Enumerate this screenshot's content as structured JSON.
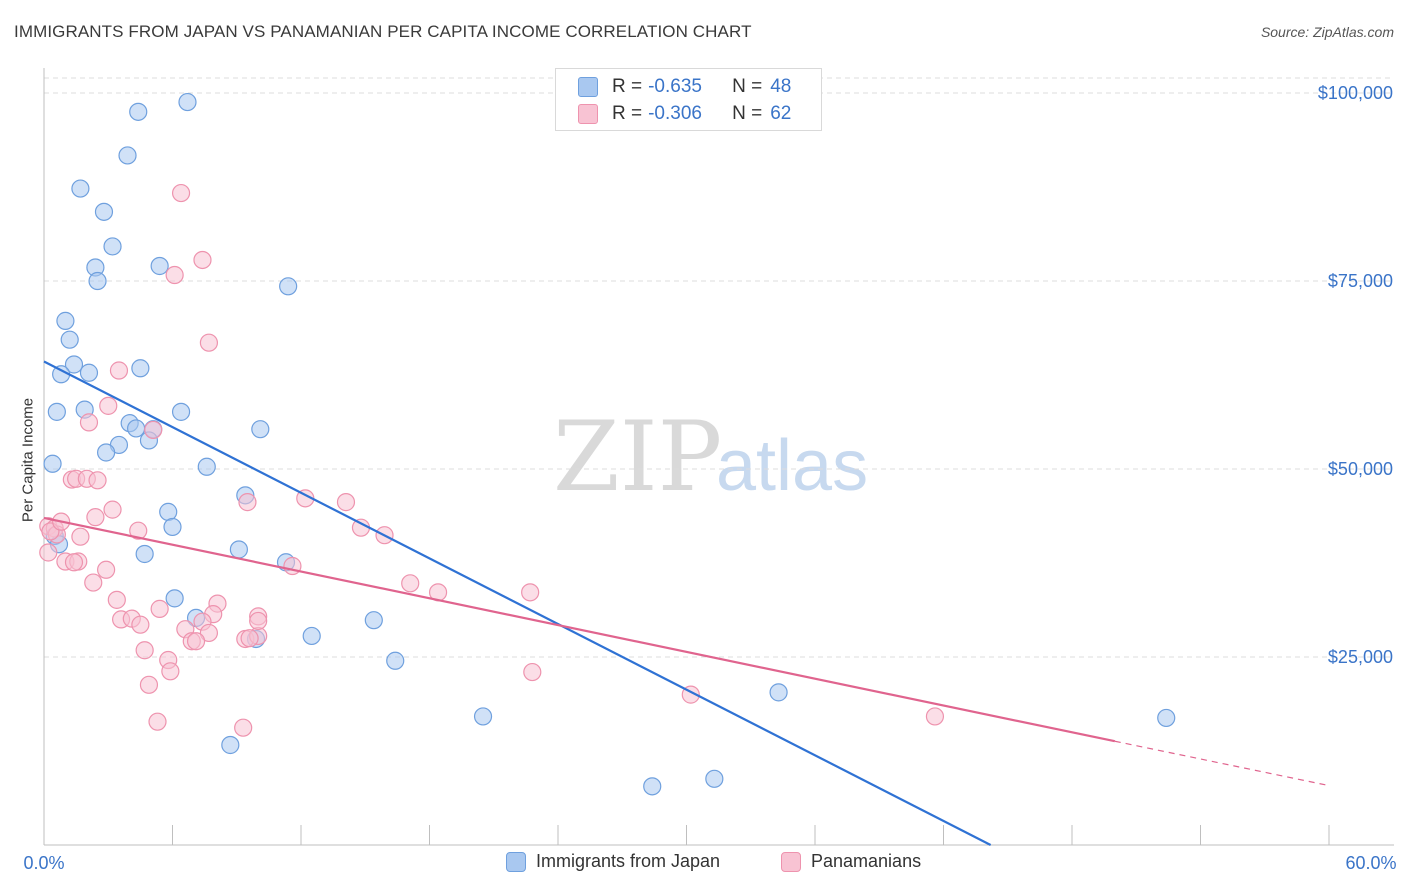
{
  "title": "IMMIGRANTS FROM JAPAN VS PANAMANIAN PER CAPITA INCOME CORRELATION CHART",
  "source": "Source: ZipAtlas.com",
  "watermark": {
    "zip": "ZIP",
    "atlas": "atlas"
  },
  "stats": [
    {
      "r_label": "R =",
      "r_value": "-0.635",
      "n_label": "N =",
      "n_value": "48",
      "color": "#a9c8f0",
      "border": "#6fa0de"
    },
    {
      "r_label": "R =",
      "r_value": "-0.306",
      "n_label": "N =",
      "n_value": "62",
      "color": "#f8c3d3",
      "border": "#ee93ae"
    }
  ],
  "legend": [
    {
      "label": "Immigrants from Japan",
      "color": "#a9c8f0",
      "border": "#6fa0de"
    },
    {
      "label": "Panamanians",
      "color": "#f8c3d3",
      "border": "#ee93ae"
    }
  ],
  "chart_data": {
    "type": "scatter",
    "title": "IMMIGRANTS FROM JAPAN VS PANAMANIAN PER CAPITA INCOME CORRELATION CHART",
    "xlabel": "",
    "ylabel": "Per Capita Income",
    "xlim": [
      0,
      60
    ],
    "ylim": [
      0,
      102000
    ],
    "x_tick_labels": [
      "0.0%",
      "60.0%"
    ],
    "y_ticks": [
      25000,
      50000,
      75000,
      100000
    ],
    "y_tick_labels": [
      "$25,000",
      "$50,000",
      "$75,000",
      "$100,000"
    ],
    "grid": true,
    "series": [
      {
        "name": "Immigrants from Japan",
        "color": "#6fa0de",
        "fill": "#a9c8f0",
        "points": [
          [
            4.4,
            97500
          ],
          [
            6.7,
            98800
          ],
          [
            3.9,
            91700
          ],
          [
            1.7,
            87300
          ],
          [
            2.8,
            84200
          ],
          [
            3.2,
            79600
          ],
          [
            2.4,
            76800
          ],
          [
            5.4,
            77000
          ],
          [
            2.5,
            75000
          ],
          [
            11.4,
            74300
          ],
          [
            1.0,
            69700
          ],
          [
            1.2,
            67200
          ],
          [
            1.4,
            63900
          ],
          [
            4.5,
            63400
          ],
          [
            0.8,
            62600
          ],
          [
            2.1,
            62800
          ],
          [
            0.6,
            57600
          ],
          [
            1.9,
            57900
          ],
          [
            6.4,
            57600
          ],
          [
            4.0,
            56100
          ],
          [
            5.1,
            55300
          ],
          [
            4.3,
            55400
          ],
          [
            10.1,
            55300
          ],
          [
            4.9,
            53800
          ],
          [
            3.5,
            53200
          ],
          [
            2.9,
            52200
          ],
          [
            7.6,
            50300
          ],
          [
            0.4,
            50700
          ],
          [
            9.4,
            46500
          ],
          [
            5.8,
            44300
          ],
          [
            6.0,
            42300
          ],
          [
            0.5,
            41100
          ],
          [
            0.7,
            40000
          ],
          [
            9.1,
            39300
          ],
          [
            4.7,
            38700
          ],
          [
            11.3,
            37600
          ],
          [
            6.1,
            32800
          ],
          [
            7.1,
            30200
          ],
          [
            15.4,
            29900
          ],
          [
            12.5,
            27800
          ],
          [
            9.9,
            27400
          ],
          [
            16.4,
            24500
          ],
          [
            20.5,
            17100
          ],
          [
            34.3,
            20300
          ],
          [
            8.7,
            13300
          ],
          [
            52.4,
            16900
          ],
          [
            28.4,
            7800
          ],
          [
            31.3,
            8800
          ]
        ]
      },
      {
        "name": "Panamanians",
        "color": "#ee93ae",
        "fill": "#f8c3d3",
        "points": [
          [
            6.4,
            86700
          ],
          [
            7.4,
            77800
          ],
          [
            6.1,
            75800
          ],
          [
            7.7,
            66800
          ],
          [
            3.5,
            63100
          ],
          [
            3.0,
            58400
          ],
          [
            2.1,
            56200
          ],
          [
            5.1,
            55200
          ],
          [
            1.3,
            48600
          ],
          [
            1.5,
            48700
          ],
          [
            2.0,
            48700
          ],
          [
            2.5,
            48500
          ],
          [
            14.1,
            45600
          ],
          [
            3.2,
            44600
          ],
          [
            9.5,
            45600
          ],
          [
            2.4,
            43600
          ],
          [
            0.2,
            42400
          ],
          [
            0.5,
            42100
          ],
          [
            0.6,
            41300
          ],
          [
            4.4,
            41800
          ],
          [
            14.8,
            42200
          ],
          [
            15.9,
            41200
          ],
          [
            1.7,
            41000
          ],
          [
            0.2,
            38900
          ],
          [
            1.0,
            37700
          ],
          [
            1.6,
            37700
          ],
          [
            1.4,
            37600
          ],
          [
            11.6,
            37100
          ],
          [
            2.9,
            36600
          ],
          [
            2.3,
            34900
          ],
          [
            17.1,
            34800
          ],
          [
            18.4,
            33600
          ],
          [
            22.7,
            33600
          ],
          [
            3.4,
            32600
          ],
          [
            8.1,
            32100
          ],
          [
            5.4,
            31400
          ],
          [
            3.6,
            30000
          ],
          [
            4.1,
            30100
          ],
          [
            7.9,
            30700
          ],
          [
            10.0,
            30400
          ],
          [
            7.4,
            29700
          ],
          [
            4.5,
            29300
          ],
          [
            6.6,
            28700
          ],
          [
            7.7,
            28200
          ],
          [
            9.4,
            27400
          ],
          [
            6.9,
            27100
          ],
          [
            7.1,
            27100
          ],
          [
            10.0,
            27800
          ],
          [
            4.7,
            25900
          ],
          [
            5.8,
            24600
          ],
          [
            5.9,
            23100
          ],
          [
            22.8,
            23000
          ],
          [
            4.9,
            21300
          ],
          [
            30.2,
            20000
          ],
          [
            41.6,
            17100
          ],
          [
            5.3,
            16400
          ],
          [
            9.3,
            15600
          ],
          [
            10.0,
            29800
          ],
          [
            9.6,
            27500
          ],
          [
            12.2,
            46100
          ],
          [
            0.3,
            41700
          ],
          [
            0.8,
            43000
          ]
        ]
      }
    ],
    "trendlines": [
      {
        "series": "Immigrants from Japan",
        "x": [
          0,
          44.2
        ],
        "y": [
          64300,
          0
        ]
      },
      {
        "series": "Panamanians",
        "x": [
          0,
          50
        ],
        "y": [
          43500,
          13800
        ]
      },
      {
        "series": "Panamanians (extrapolated)",
        "x": [
          50,
          60
        ],
        "y": [
          13800,
          7900
        ]
      }
    ]
  }
}
